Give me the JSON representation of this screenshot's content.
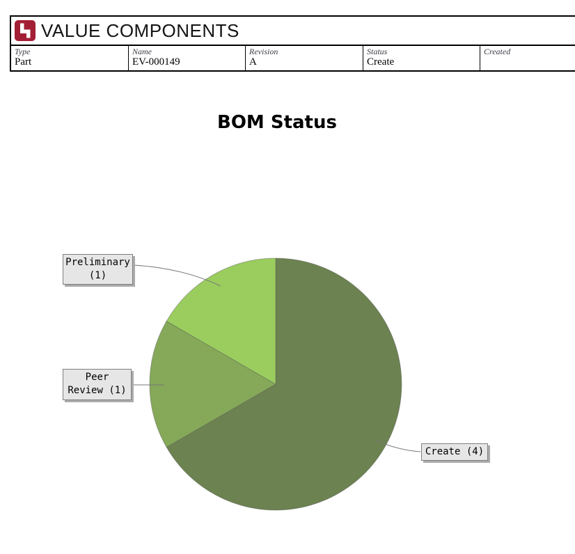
{
  "header": {
    "brand_name": "VALUE COMPONENTS",
    "brand_color": "#A31F35",
    "fields": [
      {
        "label": "Type",
        "value": "Part"
      },
      {
        "label": "Name",
        "value": "EV-000149"
      },
      {
        "label": "Revision",
        "value": "A"
      },
      {
        "label": "Status",
        "value": "Create"
      },
      {
        "label": "Created",
        "value": ""
      }
    ]
  },
  "chart_data": {
    "type": "pie",
    "title": "BOM Status",
    "start_angle_deg": 0,
    "direction": "clockwise",
    "legend": "none",
    "total": 6,
    "slices": [
      {
        "label": "Create",
        "value": 4,
        "color": "#6C8250",
        "display": "Create (4)"
      },
      {
        "label": "Peer Review",
        "value": 1,
        "color": "#85A958",
        "display": "Peer\nReview (1)"
      },
      {
        "label": "Preliminary",
        "value": 1,
        "color": "#9ACD5E",
        "display": "Preliminary\n(1)"
      }
    ]
  }
}
